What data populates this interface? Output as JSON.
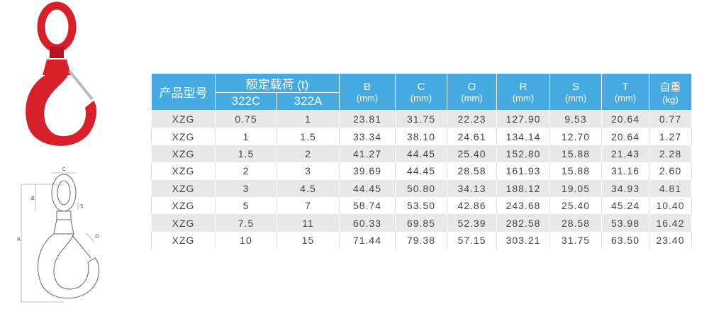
{
  "diagram": {
    "labels": [
      "C",
      "B",
      "S",
      "R",
      "D"
    ]
  },
  "table": {
    "header": {
      "model": "产品型号",
      "load": "额定载荷 (t)",
      "load_sub": [
        "322C",
        "322A"
      ],
      "dims": [
        {
          "label": "B",
          "unit": "(mm)"
        },
        {
          "label": "C",
          "unit": "(mm)"
        },
        {
          "label": "O",
          "unit": "(mm)"
        },
        {
          "label": "R",
          "unit": "(mm)"
        },
        {
          "label": "S",
          "unit": "(mm)"
        },
        {
          "label": "T",
          "unit": "(mm)"
        },
        {
          "label": "自重",
          "unit": "(kg)"
        }
      ]
    },
    "rows": [
      [
        "XZG",
        "0.75",
        "1",
        "23.81",
        "31.75",
        "22.23",
        "127.90",
        "9.53",
        "20.64",
        "0.77"
      ],
      [
        "XZG",
        "1",
        "1.5",
        "33.34",
        "38.10",
        "24.61",
        "134.14",
        "12.70",
        "20.64",
        "1.27"
      ],
      [
        "XZG",
        "1.5",
        "2",
        "41.27",
        "44.45",
        "25.40",
        "152.80",
        "15.88",
        "21.43",
        "2.28"
      ],
      [
        "XZG",
        "2",
        "3",
        "39.69",
        "44.45",
        "28.58",
        "161.93",
        "15.88",
        "31.16",
        "2.60"
      ],
      [
        "XZG",
        "3",
        "4.5",
        "44.45",
        "50.80",
        "34.13",
        "188.12",
        "19.05",
        "34.93",
        "4.81"
      ],
      [
        "XZG",
        "5",
        "7",
        "58.74",
        "53.50",
        "42.86",
        "243.68",
        "25.40",
        "45.24",
        "10.40"
      ],
      [
        "XZG",
        "7.5",
        "11",
        "60.33",
        "69.85",
        "52.39",
        "282.58",
        "28.58",
        "53.98",
        "16.42"
      ],
      [
        "XZG",
        "10",
        "15",
        "71.44",
        "79.38",
        "57.15",
        "303.21",
        "31.75",
        "63.50",
        "23.40"
      ]
    ]
  }
}
